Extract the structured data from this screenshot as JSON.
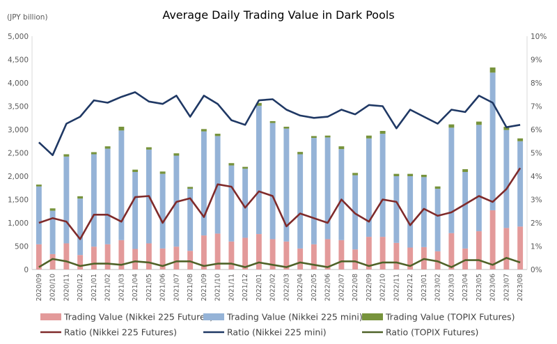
{
  "chart_data": {
    "type": "bar",
    "title": "Average Daily Trading Value in Dark Pools",
    "left_axis_unit": "(JPY billion)",
    "ylim": [
      0,
      5000
    ],
    "y2lim": [
      0,
      10
    ],
    "yticks": [
      "0",
      "500",
      "1,000",
      "1,500",
      "2,000",
      "2,500",
      "3,000",
      "3,500",
      "4,000",
      "4,500",
      "5,000"
    ],
    "y2ticks": [
      "0%",
      "1%",
      "2%",
      "3%",
      "4%",
      "5%",
      "6%",
      "7%",
      "8%",
      "9%",
      "10%"
    ],
    "categories": [
      "2020/09",
      "2020/10",
      "2020/11",
      "2020/12",
      "2021/01",
      "2021/02",
      "2021/03",
      "2021/04",
      "2021/05",
      "2021/06",
      "2021/07",
      "2021/08",
      "2021/09",
      "2021/10",
      "2021/11",
      "2021/12",
      "2022/01",
      "2022/02",
      "2022/03",
      "2022/04",
      "2022/05",
      "2022/06",
      "2022/07",
      "2022/08",
      "2022/09",
      "2022/10",
      "2022/11",
      "2022/12",
      "2023/01",
      "2023/02",
      "2023/03",
      "2023/04",
      "2023/05",
      "2023/06",
      "2023/07",
      "2023/08"
    ],
    "bar_series": [
      {
        "name": "Trading Value (Nikkei 225 Futures)",
        "color": "#e39a9a",
        "values": [
          540,
          330,
          560,
          310,
          490,
          540,
          630,
          440,
          560,
          450,
          490,
          400,
          730,
          770,
          600,
          680,
          760,
          650,
          600,
          450,
          540,
          650,
          630,
          430,
          700,
          700,
          570,
          470,
          480,
          390,
          780,
          450,
          820,
          1270,
          890,
          920
        ]
      },
      {
        "name": "Trading Value (Nikkei 225 mini)",
        "color": "#95b3d7",
        "values": [
          1240,
          930,
          1860,
          1210,
          1980,
          2050,
          2350,
          1650,
          2010,
          1600,
          1950,
          1330,
          2230,
          2090,
          1630,
          1480,
          2750,
          2490,
          2420,
          2020,
          2280,
          2180,
          1950,
          1590,
          2110,
          2210,
          1430,
          1530,
          1500,
          1340,
          2260,
          1640,
          2280,
          2950,
          2100,
          1830
        ]
      },
      {
        "name": "Trading Value (TOPIX Futures)",
        "color": "#77933c",
        "values": [
          40,
          50,
          50,
          50,
          45,
          50,
          80,
          50,
          50,
          50,
          50,
          40,
          50,
          50,
          50,
          40,
          60,
          40,
          40,
          50,
          40,
          40,
          60,
          50,
          60,
          60,
          50,
          50,
          50,
          50,
          70,
          60,
          70,
          110,
          70,
          60
        ]
      }
    ],
    "line_series": [
      {
        "name": "Ratio (Nikkei 225 Futures)",
        "color": "#7f2a2a",
        "values": [
          2.0,
          2.2,
          2.05,
          1.3,
          2.35,
          2.35,
          2.05,
          3.1,
          3.15,
          2.0,
          2.9,
          3.05,
          2.25,
          3.65,
          3.55,
          2.65,
          3.35,
          3.15,
          1.85,
          2.4,
          2.2,
          2.0,
          3.0,
          2.4,
          2.05,
          3.0,
          2.9,
          1.9,
          2.6,
          2.3,
          2.45,
          2.8,
          3.15,
          2.9,
          3.45,
          4.35
        ]
      },
      {
        "name": "Ratio (Nikkei 225 mini)",
        "color": "#1f3864",
        "values": [
          5.45,
          4.9,
          6.25,
          6.55,
          7.25,
          7.15,
          7.4,
          7.6,
          7.2,
          7.1,
          7.45,
          6.55,
          7.45,
          7.1,
          6.4,
          6.2,
          7.25,
          7.3,
          6.85,
          6.6,
          6.5,
          6.55,
          6.85,
          6.65,
          7.05,
          7.0,
          6.05,
          6.85,
          6.55,
          6.25,
          6.85,
          6.75,
          7.45,
          7.15,
          6.1,
          6.2
        ]
      },
      {
        "name": "Ratio (TOPIX Futures)",
        "color": "#4f6228",
        "values": [
          0.1,
          0.45,
          0.35,
          0.15,
          0.25,
          0.25,
          0.2,
          0.35,
          0.3,
          0.15,
          0.35,
          0.35,
          0.15,
          0.25,
          0.25,
          0.1,
          0.3,
          0.2,
          0.1,
          0.3,
          0.2,
          0.1,
          0.35,
          0.35,
          0.15,
          0.3,
          0.3,
          0.15,
          0.45,
          0.35,
          0.1,
          0.4,
          0.4,
          0.2,
          0.5,
          0.3
        ]
      }
    ],
    "legend_position": "bottom",
    "grid": false
  }
}
